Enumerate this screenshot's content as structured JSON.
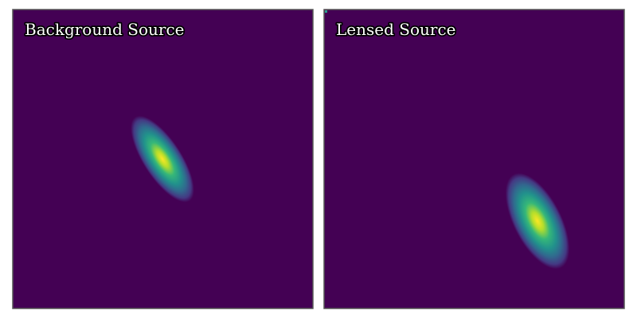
{
  "panels": [
    {
      "title": "Background Source"
    },
    {
      "title": "Lensed Source"
    }
  ]
}
